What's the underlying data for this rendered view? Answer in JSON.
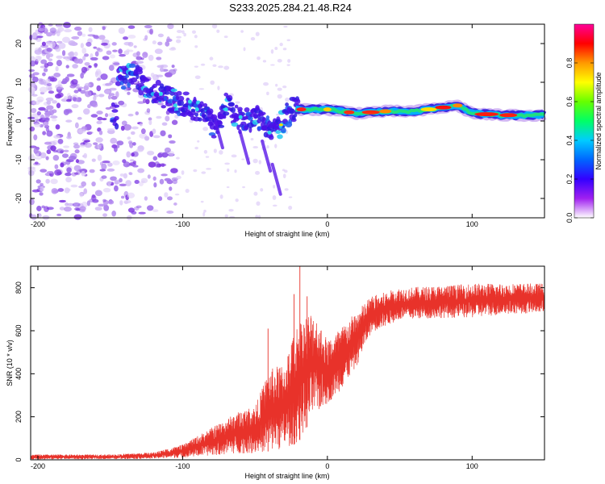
{
  "title": "S233.2025.284.21.48.R24",
  "chart_data": [
    {
      "type": "heatmap",
      "xlabel": "Height of straight line (km)",
      "ylabel": "Frequency (Hz)",
      "xlim": [
        -205,
        150
      ],
      "ylim": [
        -25,
        25
      ],
      "xticks": [
        -200,
        -100,
        0,
        100
      ],
      "yticks": [
        -20,
        -10,
        0,
        10,
        20
      ],
      "colorbar": {
        "label": "Normalized spectral amplitude",
        "range": [
          0.0,
          1.0
        ],
        "ticks": [
          "0.0",
          "0.2",
          "0.4",
          "0.6",
          "0.8"
        ],
        "tick_values": [
          0.0,
          0.2,
          0.4,
          0.6,
          0.8
        ],
        "colors": [
          "#ffffff",
          "#a020f0",
          "#3300ff",
          "#0066ff",
          "#00ccff",
          "#00ff66",
          "#66ff00",
          "#ffff00",
          "#ff9900",
          "#ff0000",
          "#ff0099"
        ]
      },
      "ridge": [
        {
          "x": -145,
          "y": 11
        },
        {
          "x": -135,
          "y": 12
        },
        {
          "x": -125,
          "y": 9
        },
        {
          "x": -115,
          "y": 7
        },
        {
          "x": -105,
          "y": 5
        },
        {
          "x": -95,
          "y": 4
        },
        {
          "x": -85,
          "y": 2
        },
        {
          "x": -78,
          "y": -2
        },
        {
          "x": -70,
          "y": 4
        },
        {
          "x": -60,
          "y": 0
        },
        {
          "x": -50,
          "y": 1
        },
        {
          "x": -40,
          "y": -2
        },
        {
          "x": -32,
          "y": -1
        },
        {
          "x": -25,
          "y": 3
        },
        {
          "x": -20,
          "y": 3
        },
        {
          "x": 0,
          "y": 3
        },
        {
          "x": 20,
          "y": 2
        },
        {
          "x": 40,
          "y": 2.5
        },
        {
          "x": 60,
          "y": 2.5
        },
        {
          "x": 80,
          "y": 3.5
        },
        {
          "x": 90,
          "y": 4
        },
        {
          "x": 100,
          "y": 2
        },
        {
          "x": 120,
          "y": 1.5
        },
        {
          "x": 150,
          "y": 1.5
        }
      ]
    },
    {
      "type": "line",
      "xlabel": "Height of straight line (km)",
      "ylabel": "SNR (10 * v/v)",
      "xlim": [
        -205,
        150
      ],
      "ylim": [
        0,
        900
      ],
      "xticks": [
        -200,
        -100,
        0,
        100
      ],
      "yticks": [
        0,
        200,
        400,
        600,
        800
      ],
      "color": "#e8322a",
      "envelope": [
        {
          "x": -205,
          "low": 2,
          "high": 25
        },
        {
          "x": -150,
          "low": 3,
          "high": 25
        },
        {
          "x": -120,
          "low": 5,
          "high": 35
        },
        {
          "x": -100,
          "low": 10,
          "high": 70
        },
        {
          "x": -80,
          "low": 20,
          "high": 150
        },
        {
          "x": -60,
          "low": 30,
          "high": 230
        },
        {
          "x": -50,
          "low": 30,
          "high": 250
        },
        {
          "x": -40,
          "low": 40,
          "high": 420
        },
        {
          "x": -30,
          "low": 50,
          "high": 450
        },
        {
          "x": -20,
          "low": 80,
          "high": 650
        },
        {
          "x": -10,
          "low": 200,
          "high": 700
        },
        {
          "x": 0,
          "low": 260,
          "high": 560
        },
        {
          "x": 10,
          "low": 330,
          "high": 620
        },
        {
          "x": 20,
          "low": 430,
          "high": 690
        },
        {
          "x": 30,
          "low": 590,
          "high": 760
        },
        {
          "x": 50,
          "low": 650,
          "high": 800
        },
        {
          "x": 80,
          "low": 660,
          "high": 810
        },
        {
          "x": 100,
          "low": 660,
          "high": 820
        },
        {
          "x": 130,
          "low": 680,
          "high": 820
        },
        {
          "x": 150,
          "low": 680,
          "high": 820
        }
      ],
      "spikes": [
        {
          "x": -41,
          "y": 610
        },
        {
          "x": -23,
          "y": 770
        },
        {
          "x": -19,
          "y": 900
        },
        {
          "x": -14,
          "y": 760
        }
      ]
    }
  ]
}
